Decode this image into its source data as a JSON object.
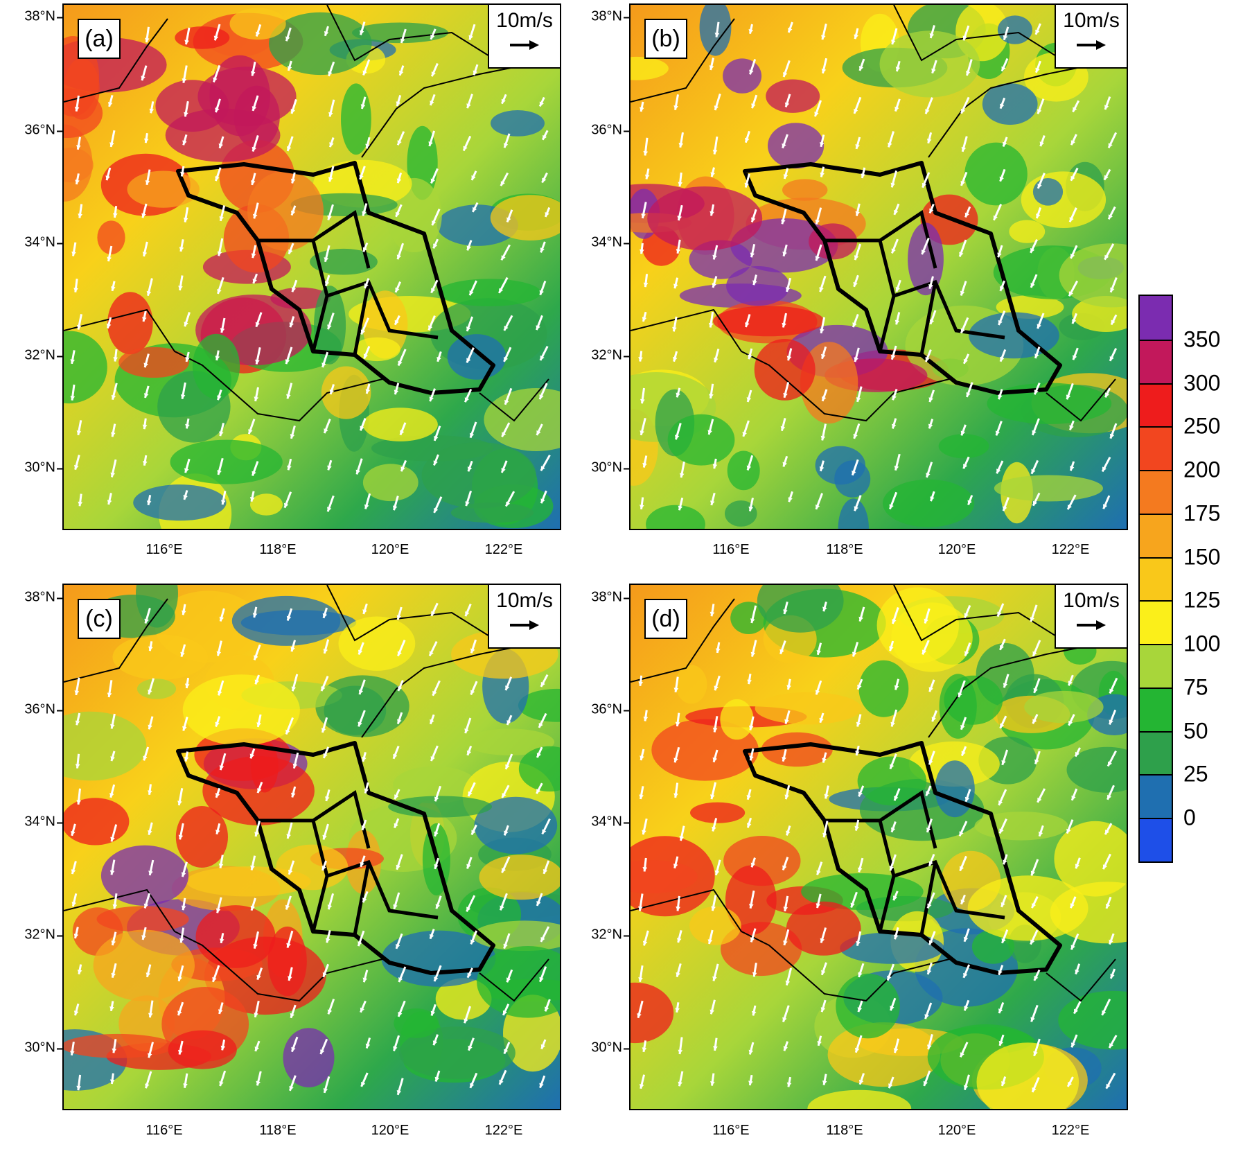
{
  "panels": [
    {
      "id": "a",
      "label": "(a)",
      "ref_vector": "10m/s",
      "theme": "warm-west"
    },
    {
      "id": "b",
      "label": "(b)",
      "ref_vector": "10m/s",
      "theme": "hot-center"
    },
    {
      "id": "c",
      "label": "(c)",
      "ref_vector": "10m/s",
      "theme": "warm-southwest"
    },
    {
      "id": "d",
      "label": "(d)",
      "ref_vector": "10m/s",
      "theme": "cool"
    }
  ],
  "lat_ticks": [
    "38°N",
    "36°N",
    "34°N",
    "32°N",
    "30°N"
  ],
  "lon_ticks": [
    "116°E",
    "118°E",
    "120°E",
    "122°E"
  ],
  "colorbar": {
    "labels": [
      "350",
      "300",
      "250",
      "200",
      "175",
      "150",
      "125",
      "100",
      "75",
      "50",
      "25",
      "0"
    ],
    "colors": [
      "#7b2cb0",
      "#c2185b",
      "#ee1c1c",
      "#f2461f",
      "#f47a1f",
      "#f7a51d",
      "#f9c81a",
      "#fbef1a",
      "#a8d63a",
      "#24b533",
      "#2ea04b",
      "#1f6fb0",
      "#1e4fe8"
    ]
  }
}
